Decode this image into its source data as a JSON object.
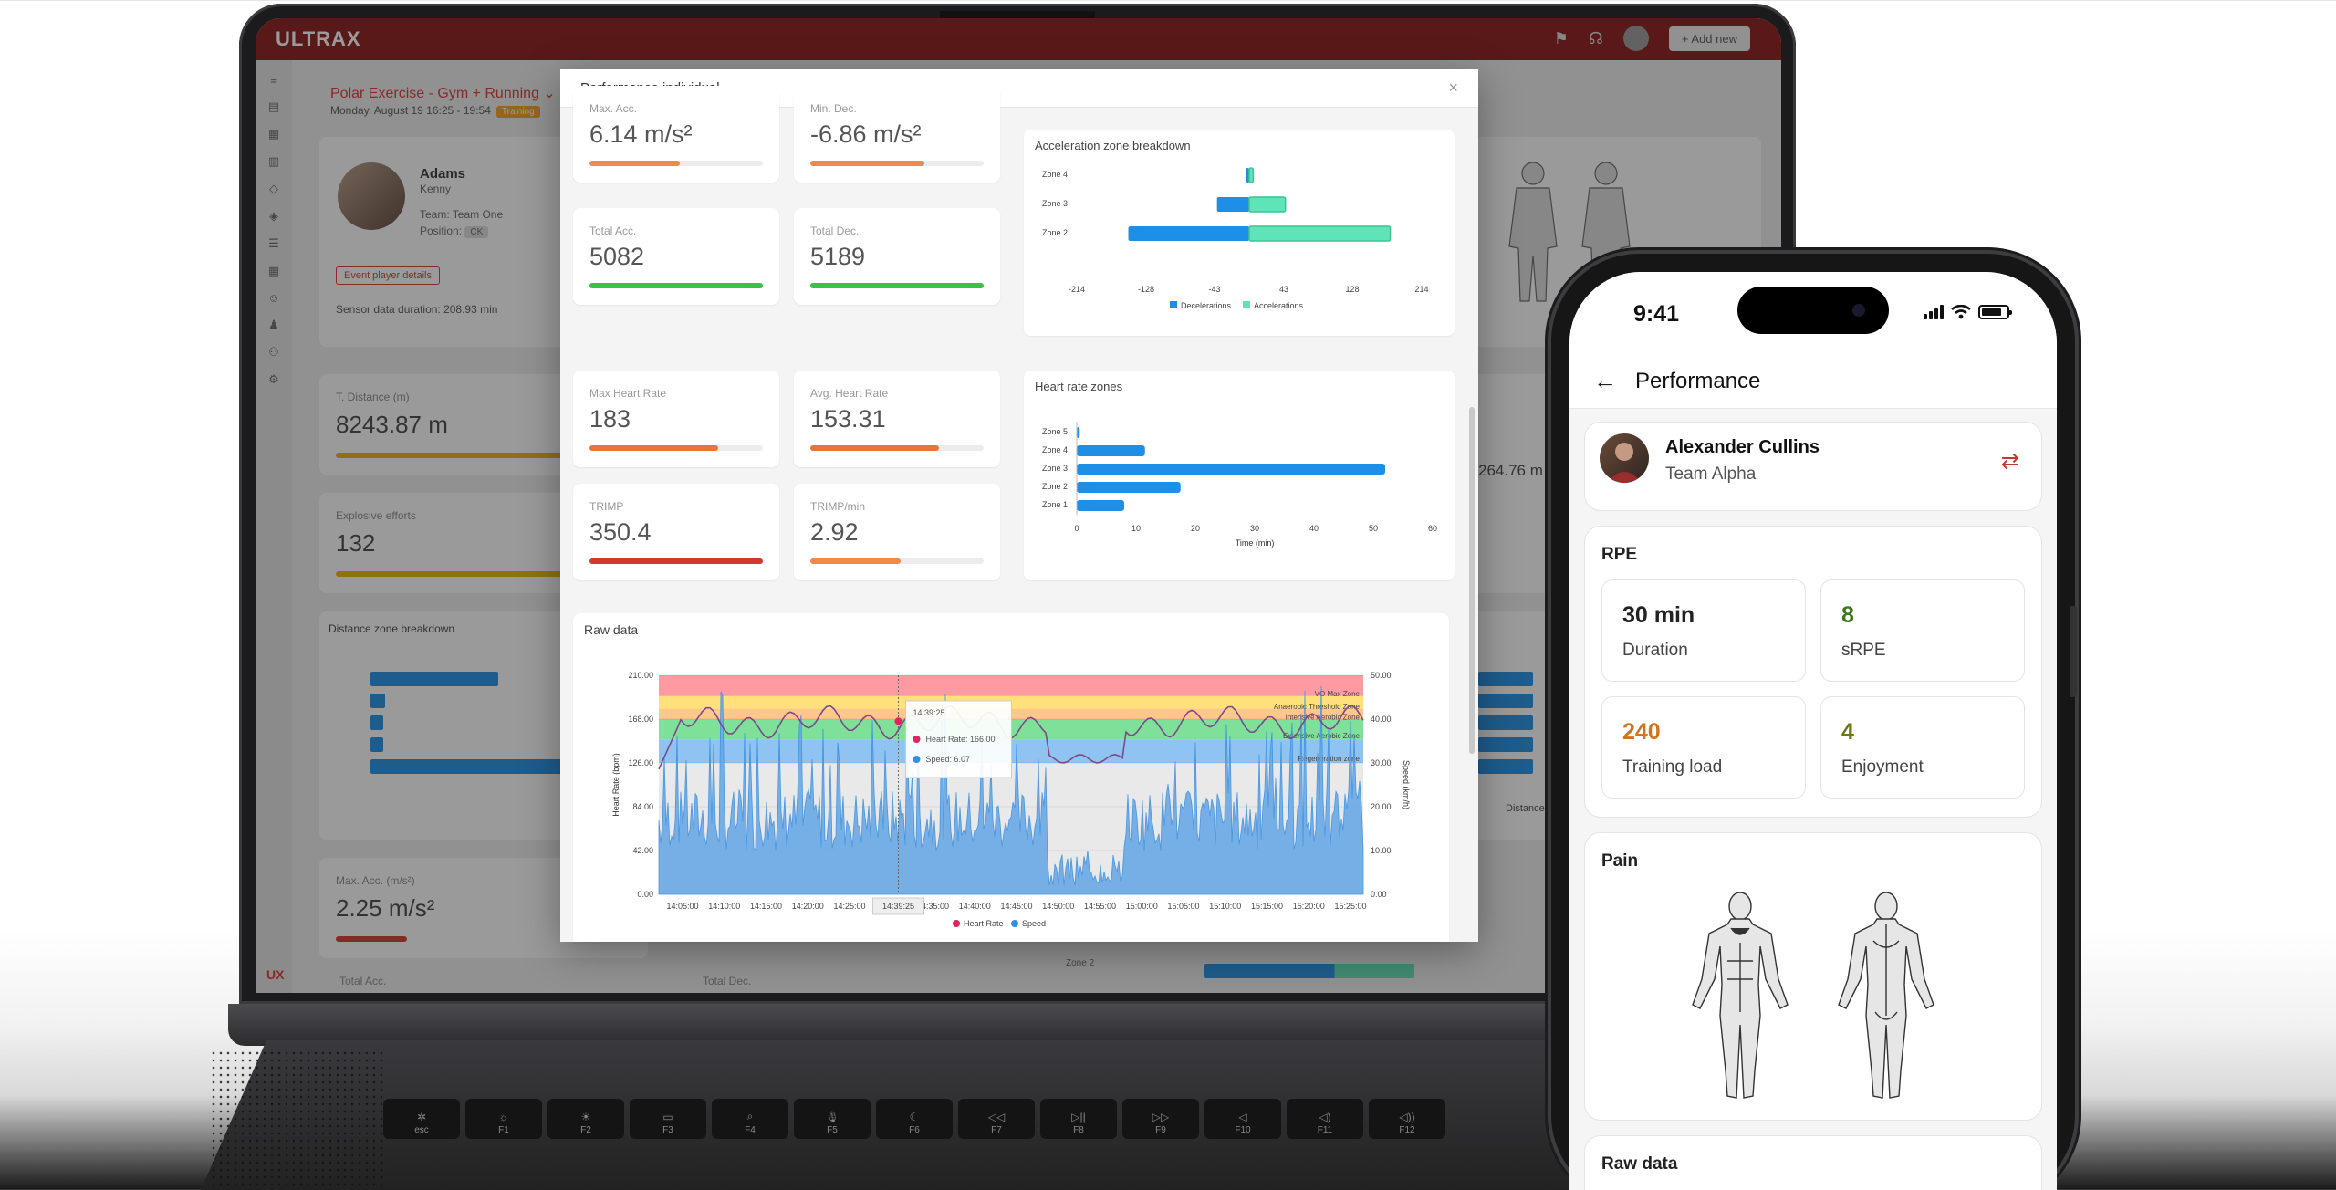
{
  "laptop": {
    "app": {
      "logo": "ULTRAX",
      "add_new": "+ Add new",
      "event_title": "Polar Exercise - Gym + Running",
      "event_date": "Monday, August 19 16:25 - 19:54",
      "event_tag": "Training",
      "player_last": "Adams",
      "player_first": "Kenny",
      "player_team": "Team: Team One",
      "player_position": "Position:",
      "position_badge": "CK",
      "event_details": "Event player details",
      "sensor_duration": "Sensor data duration: 208.93 min",
      "t_distance_label": "T. Distance (m)",
      "t_distance_value": "8243.87 m",
      "explosive_label": "Explosive efforts",
      "explosive_value": "132",
      "distance_zone_title": "Distance zone breakdown",
      "max_acc_label": "Max. Acc. (m/s²)",
      "max_acc_value": "2.25 m/s²",
      "total_acc_label": "Total Acc.",
      "total_dec_label": "Total Dec.",
      "right_value": "264.76 m",
      "distance_label": "Distance",
      "zone2_label": "Zone 2",
      "brand_badge": "UX"
    },
    "modal": {
      "title": "Performance individual",
      "close": "×",
      "kpis": [
        {
          "label": "Max. Acc.",
          "value": "6.14 m/s²",
          "fill": 0.52,
          "color": "#f08a4b"
        },
        {
          "label": "Min. Dec.",
          "value": "-6.86 m/s²",
          "fill": 0.66,
          "color": "#f08a4b"
        },
        {
          "label": "Total Acc.",
          "value": "5082",
          "fill": 1.0,
          "color": "#3cc04a"
        },
        {
          "label": "Total Dec.",
          "value": "5189",
          "fill": 1.0,
          "color": "#3cc04a"
        },
        {
          "label": "Max Heart Rate",
          "value": "183",
          "fill": 0.74,
          "color": "#e8743b"
        },
        {
          "label": "Avg. Heart Rate",
          "value": "153.31",
          "fill": 0.74,
          "color": "#e8743b"
        },
        {
          "label": "TRIMP",
          "value": "350.4",
          "fill": 1.0,
          "color": "#d03a2f"
        },
        {
          "label": "TRIMP/min",
          "value": "2.92",
          "fill": 0.52,
          "color": "#f08a4b"
        }
      ],
      "accel_title": "Acceleration zone breakdown",
      "hr_title": "Heart rate zones",
      "raw_title": "Raw data"
    }
  },
  "chart_data": [
    {
      "type": "bar",
      "title": "Acceleration zone breakdown",
      "categories": [
        "Zone 4",
        "Zone 3",
        "Zone 2"
      ],
      "series": [
        {
          "name": "Decelerations",
          "values": [
            -4,
            -40,
            -150
          ]
        },
        {
          "name": "Accelerations",
          "values": [
            5,
            45,
            175
          ]
        }
      ],
      "x_ticks": [
        "-214",
        "-128",
        "-43",
        "43",
        "128",
        "214"
      ],
      "xlim": [
        -214,
        214
      ],
      "legend": "bottom",
      "colors": {
        "Decelerations": "#1e8fe6",
        "Accelerations": "#5fe3b8"
      }
    },
    {
      "type": "bar",
      "title": "Heart rate zones",
      "categories": [
        "Zone 5",
        "Zone 4",
        "Zone 3",
        "Zone 2",
        "Zone 1"
      ],
      "values": [
        0.5,
        11.5,
        52,
        17.5,
        8
      ],
      "x_ticks": [
        "0",
        "10",
        "20",
        "30",
        "40",
        "50",
        "60"
      ],
      "xlim": [
        0,
        60
      ],
      "xlabel": "Time (min)",
      "color": "#1e8fe6"
    },
    {
      "type": "line",
      "title": "Raw data",
      "ylabel": "Heart Rate (bpm)",
      "y2label": "Speed (km/h)",
      "y_ticks": [
        "210.00",
        "168.00",
        "126.00",
        "84.00",
        "42.00",
        "0.00"
      ],
      "y2_ticks": [
        "50.00",
        "40.00",
        "30.00",
        "20.00",
        "10.00",
        "0.00"
      ],
      "x_ticks": [
        "14:05:00",
        "14:10:00",
        "14:15:00",
        "14:20:00",
        "14:25:00",
        "14:30:00",
        "14:35:00",
        "14:40:00",
        "14:45:00",
        "14:50:00",
        "14:55:00",
        "15:00:00",
        "15:05:00",
        "15:10:00",
        "15:15:00",
        "15:20:00",
        "15:25:00"
      ],
      "zones": [
        "VO Max Zone",
        "Anaerobic Threshold Zone",
        "Intensive Aerobic Zone",
        "Extensive Aerobic Zone",
        "Regeneration zone"
      ],
      "tooltip": {
        "time": "14:39:25",
        "hr_label": "Heart Rate:",
        "hr": "166.00",
        "speed_label": "Speed:",
        "speed": "6.07"
      },
      "legend": [
        "Heart Rate",
        "Speed"
      ],
      "colors": {
        "Heart Rate": "#e0245e",
        "Speed": "#2f8fe6"
      }
    }
  ],
  "phone": {
    "time": "9:41",
    "title": "Performance",
    "player_name": "Alexander Cullins",
    "player_team": "Team Alpha",
    "rpe_title": "RPE",
    "stats": [
      {
        "value": "30 min",
        "label": "Duration",
        "color": "#222222"
      },
      {
        "value": "8",
        "label": "sRPE",
        "color": "#3d7a1a"
      },
      {
        "value": "240",
        "label": "Training load",
        "color": "#d4731a"
      },
      {
        "value": "4",
        "label": "Enjoyment",
        "color": "#6b7a10"
      }
    ],
    "pain_title": "Pain",
    "raw_title": "Raw data"
  },
  "keyboard": [
    {
      "icon": "✲",
      "label": "esc"
    },
    {
      "icon": "☼",
      "label": "F1"
    },
    {
      "icon": "☀",
      "label": "F2"
    },
    {
      "icon": "▭",
      "label": "F3"
    },
    {
      "icon": "⌕",
      "label": "F4"
    },
    {
      "icon": "🎙",
      "label": "F5"
    },
    {
      "icon": "☾",
      "label": "F6"
    },
    {
      "icon": "◁◁",
      "label": "F7"
    },
    {
      "icon": "▷||",
      "label": "F8"
    },
    {
      "icon": "▷▷",
      "label": "F9"
    },
    {
      "icon": "◁",
      "label": "F10"
    },
    {
      "icon": "◁)",
      "label": "F11"
    },
    {
      "icon": "◁))",
      "label": "F12"
    }
  ]
}
